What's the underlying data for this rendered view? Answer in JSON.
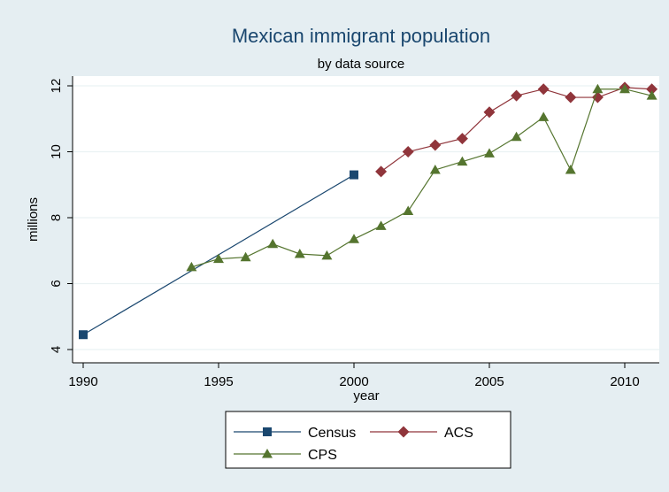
{
  "chart_data": {
    "type": "line",
    "title": "Mexican immigrant population",
    "subtitle": "by data source",
    "xlabel": "year",
    "ylabel": "millions",
    "xlim": [
      1990,
      2011
    ],
    "ylim": [
      4,
      12
    ],
    "xticks": [
      1990,
      1995,
      2000,
      2005,
      2010
    ],
    "yticks": [
      4,
      6,
      8,
      10,
      12
    ],
    "grid": true,
    "legend_position": "bottom",
    "series": [
      {
        "name": "Census",
        "color": "#1a476f",
        "marker": "square",
        "x": [
          1990,
          2000
        ],
        "y": [
          4.45,
          9.3
        ]
      },
      {
        "name": "ACS",
        "color": "#90353b",
        "marker": "diamond",
        "x": [
          2001,
          2002,
          2003,
          2004,
          2005,
          2006,
          2007,
          2008,
          2009,
          2010,
          2011
        ],
        "y": [
          9.4,
          10.0,
          10.2,
          10.4,
          11.2,
          11.7,
          11.9,
          11.65,
          11.65,
          11.95,
          11.9
        ]
      },
      {
        "name": "CPS",
        "color": "#55752f",
        "marker": "triangle",
        "x": [
          1994,
          1995,
          1996,
          1997,
          1998,
          1999,
          2000,
          2001,
          2002,
          2003,
          2004,
          2005,
          2006,
          2007,
          2008,
          2009,
          2010,
          2011
        ],
        "y": [
          6.5,
          6.75,
          6.8,
          7.2,
          6.9,
          6.85,
          7.35,
          7.75,
          8.2,
          9.45,
          9.7,
          9.95,
          10.45,
          11.05,
          9.45,
          11.9,
          11.9,
          11.7
        ]
      }
    ]
  }
}
